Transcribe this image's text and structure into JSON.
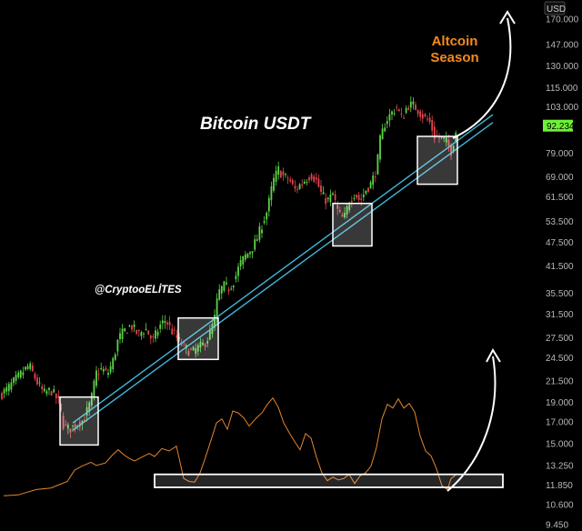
{
  "chart_data": {
    "type": "candlestick",
    "title": "Bitcoin USDT",
    "watermark_handle": "@CryptooELİTES",
    "annotation": "Altcoin Season",
    "currency": "USD",
    "current_price": {
      "value": 92.234,
      "label": "92.234"
    },
    "y_scale": "log",
    "ylim": [
      9.45,
      182
    ],
    "y_ticks": [
      {
        "value": 170,
        "label": "170.000"
      },
      {
        "value": 147,
        "label": "147.000"
      },
      {
        "value": 130,
        "label": "130.000"
      },
      {
        "value": 115,
        "label": "115.000"
      },
      {
        "value": 103,
        "label": "103.000"
      },
      {
        "value": 79,
        "label": "79.000"
      },
      {
        "value": 69,
        "label": "69.000"
      },
      {
        "value": 61.5,
        "label": "61.500"
      },
      {
        "value": 53.5,
        "label": "53.500"
      },
      {
        "value": 47.5,
        "label": "47.500"
      },
      {
        "value": 41.5,
        "label": "41.500"
      },
      {
        "value": 35.5,
        "label": "35.500"
      },
      {
        "value": 31.5,
        "label": "31.500"
      },
      {
        "value": 27.5,
        "label": "27.500"
      },
      {
        "value": 24.5,
        "label": "24.500"
      },
      {
        "value": 21.5,
        "label": "21.500"
      },
      {
        "value": 19,
        "label": "19.000"
      },
      {
        "value": 17,
        "label": "17.000"
      },
      {
        "value": 15,
        "label": "15.000"
      },
      {
        "value": 13.25,
        "label": "13.250"
      },
      {
        "value": 11.85,
        "label": "11.850"
      },
      {
        "value": 10.6,
        "label": "10.600"
      },
      {
        "value": 9.45,
        "label": "9.450"
      }
    ],
    "price_path": [
      [
        0,
        19.8
      ],
      [
        8,
        20.5
      ],
      [
        16,
        21.5
      ],
      [
        24,
        22.5
      ],
      [
        32,
        23.5
      ],
      [
        40,
        21.5
      ],
      [
        48,
        20.0
      ],
      [
        56,
        20.4
      ],
      [
        64,
        19.2
      ],
      [
        70,
        16.6
      ],
      [
        76,
        16.3
      ],
      [
        84,
        16.8
      ],
      [
        92,
        17.2
      ],
      [
        100,
        19.2
      ],
      [
        106,
        22.5
      ],
      [
        112,
        23.0
      ],
      [
        118,
        22.3
      ],
      [
        124,
        24.0
      ],
      [
        130,
        27.3
      ],
      [
        136,
        28.5
      ],
      [
        144,
        29.5
      ],
      [
        152,
        28.0
      ],
      [
        160,
        29.0
      ],
      [
        168,
        27.0
      ],
      [
        176,
        29.5
      ],
      [
        182,
        30.5
      ],
      [
        188,
        28.8
      ],
      [
        194,
        27.5
      ],
      [
        200,
        26.5
      ],
      [
        206,
        25.6
      ],
      [
        212,
        25.4
      ],
      [
        218,
        26.0
      ],
      [
        224,
        26.5
      ],
      [
        230,
        27.8
      ],
      [
        236,
        30.8
      ],
      [
        240,
        35.5
      ],
      [
        246,
        37.0
      ],
      [
        252,
        36.5
      ],
      [
        258,
        38.5
      ],
      [
        264,
        42.0
      ],
      [
        270,
        44.0
      ],
      [
        276,
        45.5
      ],
      [
        282,
        48.0
      ],
      [
        288,
        52.5
      ],
      [
        294,
        57.0
      ],
      [
        300,
        67.0
      ],
      [
        306,
        72.0
      ],
      [
        312,
        69.0
      ],
      [
        318,
        68.0
      ],
      [
        324,
        64.0
      ],
      [
        330,
        66.0
      ],
      [
        336,
        68.0
      ],
      [
        342,
        70.0
      ],
      [
        348,
        67.5
      ],
      [
        354,
        62.0
      ],
      [
        360,
        60.0
      ],
      [
        366,
        62.5
      ],
      [
        372,
        56.0
      ],
      [
        378,
        54.0
      ],
      [
        384,
        60.0
      ],
      [
        390,
        63.0
      ],
      [
        396,
        60.0
      ],
      [
        402,
        64.0
      ],
      [
        408,
        66.5
      ],
      [
        414,
        72.0
      ],
      [
        418,
        85.0
      ],
      [
        424,
        95.0
      ],
      [
        430,
        99.0
      ],
      [
        436,
        103.0
      ],
      [
        442,
        96.0
      ],
      [
        448,
        104.0
      ],
      [
        454,
        104.0
      ],
      [
        460,
        101.0
      ],
      [
        466,
        97.0
      ],
      [
        472,
        95.0
      ],
      [
        478,
        87.0
      ],
      [
        484,
        86.0
      ],
      [
        490,
        85.0
      ],
      [
        496,
        80.0
      ],
      [
        502,
        91.0
      ]
    ],
    "trendlines": [
      {
        "points": [
          [
            80,
            16.9
          ],
          [
            542,
            98.5
          ]
        ]
      },
      {
        "points": [
          [
            80,
            16.2
          ],
          [
            542,
            94.2
          ]
        ]
      }
    ],
    "highlight_boxes": [
      {
        "x": [
          66,
          108
        ],
        "y": [
          14.9,
          19.6
        ]
      },
      {
        "x": [
          196,
          240
        ],
        "y": [
          24.3,
          30.8
        ]
      },
      {
        "x": [
          366,
          409
        ],
        "y": [
          46.5,
          59.3
        ]
      },
      {
        "x": [
          459,
          503
        ],
        "y": [
          66.2,
          87.0
        ]
      }
    ],
    "oscillator_path": [
      [
        4,
        11.15
      ],
      [
        20,
        11.2
      ],
      [
        40,
        11.55
      ],
      [
        56,
        11.65
      ],
      [
        64,
        11.85
      ],
      [
        74,
        12.1
      ],
      [
        82,
        12.9
      ],
      [
        90,
        13.2
      ],
      [
        100,
        13.5
      ],
      [
        106,
        13.25
      ],
      [
        116,
        13.45
      ],
      [
        124,
        14.1
      ],
      [
        130,
        14.5
      ],
      [
        136,
        14.1
      ],
      [
        142,
        13.8
      ],
      [
        148,
        13.6
      ],
      [
        156,
        13.9
      ],
      [
        164,
        14.2
      ],
      [
        170,
        13.95
      ],
      [
        178,
        14.6
      ],
      [
        186,
        14.4
      ],
      [
        194,
        14.8
      ],
      [
        202,
        12.3
      ],
      [
        208,
        12.1
      ],
      [
        214,
        12.05
      ],
      [
        220,
        12.7
      ],
      [
        226,
        13.9
      ],
      [
        232,
        15.3
      ],
      [
        238,
        16.9
      ],
      [
        244,
        17.3
      ],
      [
        250,
        16.3
      ],
      [
        256,
        18.1
      ],
      [
        262,
        17.9
      ],
      [
        268,
        17.4
      ],
      [
        274,
        16.6
      ],
      [
        282,
        17.4
      ],
      [
        288,
        17.9
      ],
      [
        294,
        18.8
      ],
      [
        300,
        19.5
      ],
      [
        306,
        18.5
      ],
      [
        312,
        16.9
      ],
      [
        318,
        16.0
      ],
      [
        324,
        15.2
      ],
      [
        330,
        14.5
      ],
      [
        336,
        15.9
      ],
      [
        342,
        15.5
      ],
      [
        348,
        13.9
      ],
      [
        354,
        12.7
      ],
      [
        360,
        12.15
      ],
      [
        366,
        12.4
      ],
      [
        372,
        12.2
      ],
      [
        378,
        12.3
      ],
      [
        384,
        12.6
      ],
      [
        390,
        11.95
      ],
      [
        396,
        12.5
      ],
      [
        402,
        12.7
      ],
      [
        408,
        13.2
      ],
      [
        414,
        14.7
      ],
      [
        420,
        17.3
      ],
      [
        426,
        18.8
      ],
      [
        432,
        18.4
      ],
      [
        438,
        19.4
      ],
      [
        444,
        18.4
      ],
      [
        450,
        18.9
      ],
      [
        456,
        18.0
      ],
      [
        462,
        15.7
      ],
      [
        468,
        14.4
      ],
      [
        474,
        14.0
      ],
      [
        480,
        13.0
      ],
      [
        486,
        11.8
      ],
      [
        492,
        11.55
      ],
      [
        496,
        12.3
      ],
      [
        502,
        12.6
      ]
    ],
    "support_zone": {
      "x": [
        170,
        553
      ],
      "y": [
        11.7,
        12.6
      ]
    },
    "colors": {
      "up": "#5dd447",
      "down": "#e2474f",
      "trendline": "#3fb6d8",
      "oscillator": "#e2852f",
      "annotation": "#f58a1e",
      "current_price_bg": "#6ef037",
      "box": "#ffffff"
    }
  }
}
